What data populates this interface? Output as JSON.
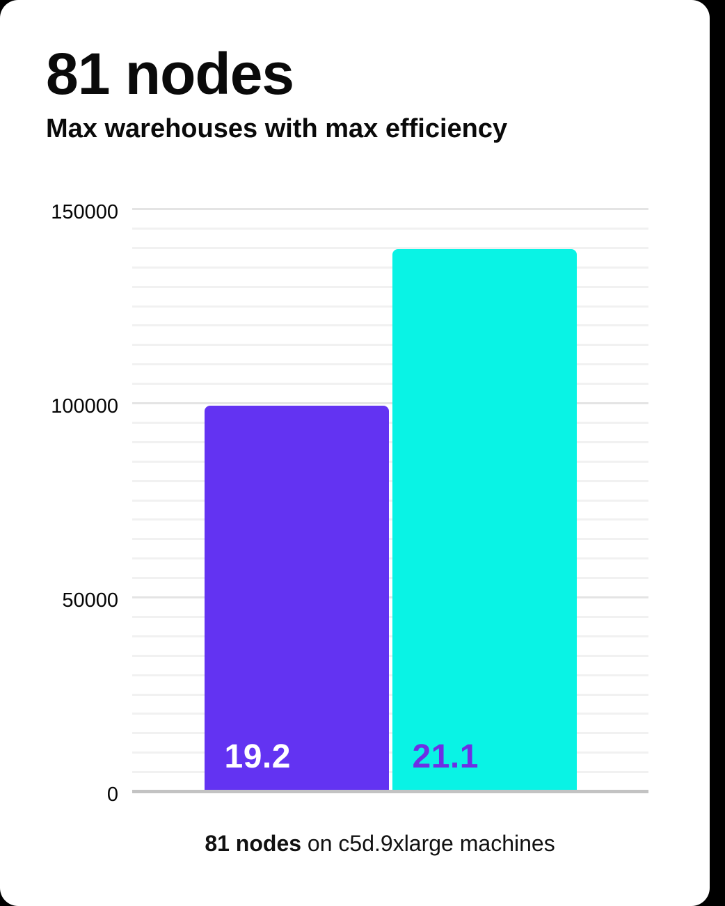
{
  "header": {
    "title": "81 nodes",
    "subtitle": "Max warehouses with max efficiency"
  },
  "caption": {
    "bold": "81 nodes",
    "rest": " on c5d.9xlarge machines"
  },
  "colors": {
    "page_background": "#000000",
    "card_background": "#ffffff",
    "text": "#0a0a0a",
    "grid_minor": "#f1f1f1",
    "grid_major": "#e4e4e4",
    "axis_line": "#c3c3c3",
    "purple": "#6333f2",
    "cyan": "#09f3e5"
  },
  "chart_data": {
    "type": "bar",
    "title": "81 nodes",
    "subtitle": "Max warehouses with max efficiency",
    "caption": "81 nodes on c5d.9xlarge machines",
    "xlabel": "",
    "ylabel": "",
    "ylim": [
      0,
      150000
    ],
    "yticks": [
      0,
      50000,
      100000,
      150000
    ],
    "ytick_labels": [
      "0",
      "50000",
      "100000",
      "150000"
    ],
    "grid": true,
    "grid_step": 5000,
    "major_step": 50000,
    "legend": "none",
    "bars": [
      {
        "label": "19.2",
        "value": 99400,
        "color": "#6333f2",
        "label_color": "#ffffff"
      },
      {
        "label": "21.1",
        "value": 139800,
        "color": "#09f3e5",
        "label_color": "#6d2fe4"
      }
    ]
  }
}
